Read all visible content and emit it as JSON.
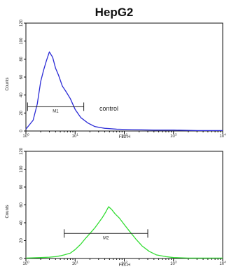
{
  "chart_data": [
    {
      "type": "area",
      "panel": "top",
      "title": "HepG2",
      "xlabel": "FL1-H",
      "ylabel": "Counts",
      "x_scale": "log",
      "xlim": [
        1,
        10000
      ],
      "ylim": [
        0,
        120
      ],
      "x_tick_labels": [
        "10^0",
        "10^1",
        "10^2",
        "10^3",
        "10^4"
      ],
      "y_tick_labels": [
        "0",
        "20",
        "40",
        "60",
        "80",
        "100",
        "120"
      ],
      "series": [
        {
          "color": "#2b2bd6",
          "x": [
            1,
            1.4,
            1.7,
            2.0,
            2.3,
            2.6,
            3.0,
            3.5,
            4.0,
            4.6,
            5.5,
            6.5,
            8,
            10,
            13,
            18,
            25,
            40,
            70,
            150,
            400,
            1000,
            3000,
            10000
          ],
          "values": [
            2,
            12,
            30,
            55,
            68,
            78,
            88,
            82,
            70,
            62,
            50,
            44,
            36,
            24,
            15,
            9,
            5,
            3,
            2,
            1.5,
            1,
            1,
            0.5,
            0.5
          ]
        }
      ],
      "gate": {
        "label": "M1",
        "x_range": [
          1.08,
          15
        ]
      },
      "annotation": "control"
    },
    {
      "type": "area",
      "panel": "bottom",
      "title": "",
      "xlabel": "FL1-H",
      "ylabel": "Counts",
      "x_scale": "log",
      "xlim": [
        1,
        10000
      ],
      "ylim": [
        0,
        120
      ],
      "x_tick_labels": [
        "10^0",
        "10^1",
        "10^2",
        "10^3",
        "10^4"
      ],
      "y_tick_labels": [
        "0",
        "20",
        "40",
        "60",
        "80",
        "100",
        "120"
      ],
      "series": [
        {
          "color": "#33dd33",
          "x": [
            1,
            2,
            3,
            4,
            5,
            6,
            8,
            10,
            13,
            16,
            20,
            25,
            30,
            36,
            42,
            48,
            55,
            65,
            80,
            100,
            130,
            170,
            230,
            320,
            450,
            700,
            1000,
            2000,
            10000
          ],
          "values": [
            0.5,
            1,
            1.5,
            2,
            3,
            4,
            6,
            10,
            16,
            22,
            28,
            34,
            40,
            46,
            52,
            58,
            55,
            50,
            45,
            38,
            30,
            22,
            14,
            8,
            4,
            2,
            1,
            0.5,
            0.5
          ]
        }
      ],
      "gate": {
        "label": "M2",
        "x_range": [
          6,
          300
        ]
      },
      "annotation": ""
    }
  ]
}
